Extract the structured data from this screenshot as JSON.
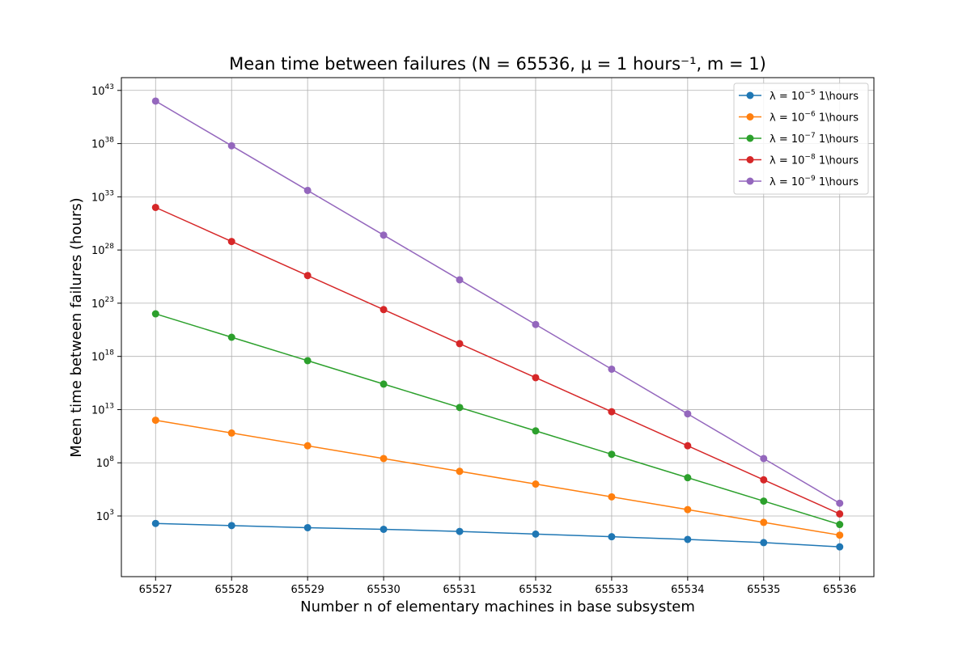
{
  "chart_data": {
    "type": "line",
    "title": "Mean time between failures (N = 65536, μ = 1 hours⁻¹, m = 1)",
    "xlabel": "Number n of elementary machines in base subsystem",
    "ylabel": "Meen time between failures (hours)",
    "yscale": "log",
    "ylim_exponent": [
      -2.7,
      44.2
    ],
    "xlim": [
      65526.55,
      65536.45
    ],
    "grid": true,
    "legend_position": "top-right",
    "x": [
      65527,
      65528,
      65529,
      65530,
      65531,
      65532,
      65533,
      65534,
      65535,
      65536
    ],
    "x_tick_labels": [
      "65527",
      "65528",
      "65529",
      "65530",
      "65531",
      "65532",
      "65533",
      "65534",
      "65535",
      "65536"
    ],
    "y_ticks": [
      {
        "base": "10",
        "exp": "3",
        "value_exponent": 3
      },
      {
        "base": "10",
        "exp": "8",
        "value_exponent": 8
      },
      {
        "base": "10",
        "exp": "13",
        "value_exponent": 13
      },
      {
        "base": "10",
        "exp": "18",
        "value_exponent": 18
      },
      {
        "base": "10",
        "exp": "23",
        "value_exponent": 23
      },
      {
        "base": "10",
        "exp": "28",
        "value_exponent": 28
      },
      {
        "base": "10",
        "exp": "33",
        "value_exponent": 33
      },
      {
        "base": "10",
        "exp": "38",
        "value_exponent": 38
      },
      {
        "base": "10",
        "exp": "43",
        "value_exponent": 43
      }
    ],
    "series": [
      {
        "name": "λ = 10⁻⁵ 1\\hours",
        "label_prefix": "λ = 10",
        "label_exp": "−5",
        "label_suffix": " 1\\hours",
        "color": "#1f77b4",
        "y_log10": [
          2.3,
          2.1,
          1.9,
          1.75,
          1.55,
          1.3,
          1.05,
          0.8,
          0.5,
          0.1
        ]
      },
      {
        "name": "λ = 10⁻⁶ 1\\hours",
        "label_prefix": "λ = 10",
        "label_exp": "−6",
        "label_suffix": " 1\\hours",
        "color": "#ff7f0e",
        "y_log10": [
          12.0,
          10.8,
          9.6,
          8.4,
          7.2,
          6.0,
          4.8,
          3.6,
          2.4,
          1.2
        ]
      },
      {
        "name": "λ = 10⁻⁷ 1\\hours",
        "label_prefix": "λ = 10",
        "label_exp": "−7",
        "label_suffix": " 1\\hours",
        "color": "#2ca02c",
        "y_log10": [
          22.0,
          19.8,
          17.6,
          15.4,
          13.2,
          11.0,
          8.8,
          6.6,
          4.4,
          2.2
        ]
      },
      {
        "name": "λ = 10⁻⁸ 1\\hours",
        "label_prefix": "λ = 10",
        "label_exp": "−8",
        "label_suffix": " 1\\hours",
        "color": "#d62728",
        "y_log10": [
          32.0,
          28.8,
          25.6,
          22.4,
          19.2,
          16.0,
          12.8,
          9.6,
          6.4,
          3.2
        ]
      },
      {
        "name": "λ = 10⁻⁹ 1\\hours",
        "label_prefix": "λ = 10",
        "label_exp": "−9",
        "label_suffix": " 1\\hours",
        "color": "#9467bd",
        "y_log10": [
          42.0,
          37.8,
          33.6,
          29.4,
          25.2,
          21.0,
          16.8,
          12.6,
          8.4,
          4.2
        ]
      }
    ]
  }
}
